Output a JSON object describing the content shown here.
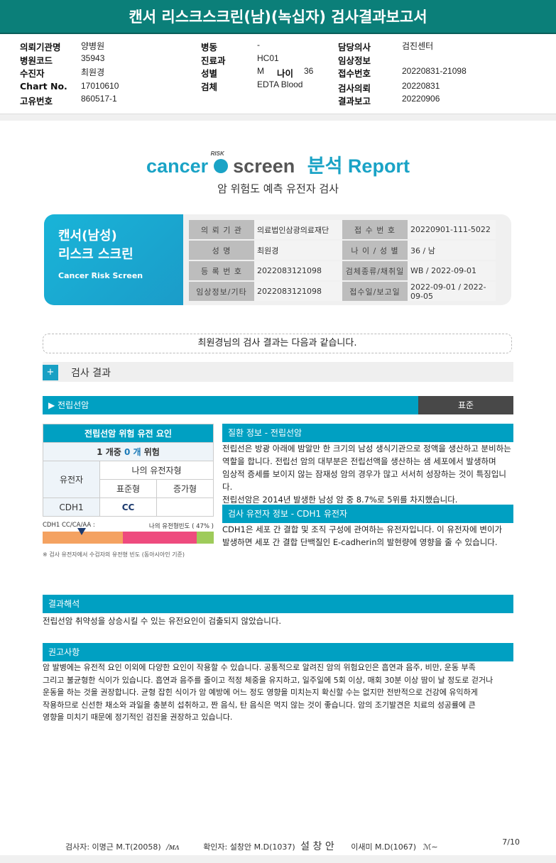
{
  "title": "캔서 리스크스크린(남)(녹십자) 검사결과보고서",
  "header": {
    "col1": [
      {
        "label": "의뢰기관명",
        "value": "양병원"
      },
      {
        "label": "병원코드",
        "value": "35943"
      },
      {
        "label": "수진자",
        "value": "최원경"
      },
      {
        "label": "Chart No.",
        "value": "17010610"
      },
      {
        "label": "고유번호",
        "value": "860517-1"
      }
    ],
    "col2": [
      {
        "label": "병동",
        "value": "-"
      },
      {
        "label": "진료과",
        "value": "HC01"
      },
      {
        "label": "성별",
        "value": "M"
      },
      {
        "label": "검체",
        "value": "EDTA Blood"
      }
    ],
    "age_label": "나이",
    "age_value": "36",
    "col3": [
      {
        "label": "담당의사",
        "value": "검진센터"
      },
      {
        "label": "임상정보",
        "value": ""
      },
      {
        "label": "접수번호",
        "value": "20220831-21098"
      },
      {
        "label": "검사의뢰",
        "value": "20220831"
      },
      {
        "label": "결과보고",
        "value": "20220906"
      }
    ]
  },
  "logo": {
    "cancer": "cancer",
    "risk": "RISK",
    "screen": "screen",
    "report": "분석 Report",
    "subtitle": "암 위험도 예측 유전자 검사"
  },
  "card": {
    "title1": "캔서(남성)",
    "title2": "리스크 스크린",
    "subtitle": "Cancer Risk Screen",
    "rows": [
      [
        "의 뢰 기 관",
        "의료법인삼광의료재단",
        "접 수 번 호",
        "20220901-111-5022"
      ],
      [
        "성 명",
        "최원경",
        "나 이 / 성 별",
        "36 / 남"
      ],
      [
        "등 록 번 호",
        "2022083121098",
        "검체종류/채취일",
        "WB / 2022-09-01"
      ],
      [
        "임상정보/기타",
        "2022083121098",
        "접수일/보고일",
        "2022-09-01 / 2022-09-05"
      ]
    ]
  },
  "greeting": "최원경님의 검사 결과는 다음과 같습니다.",
  "results": {
    "title": "검사 결과",
    "category": "▶ 전립선암",
    "status": "표준",
    "table": {
      "title": "전립선암 위험 유전 요인",
      "summary": "1 개중 0 개 위험",
      "gene_h": "유전자",
      "my_h": "나의 유전자형",
      "std_h": "표준형",
      "inc_h": "증가형",
      "gene": "CDH1",
      "std": "CC",
      "inc": ""
    },
    "bar": {
      "left_label": "CDH1 CC/CA/AA :",
      "right_label": "나의 유전형빈도 ( 47% )",
      "frequency_pct": 47,
      "segments": [
        {
          "pct": 47,
          "color": "#f4a261"
        },
        {
          "pct": 43,
          "color": "#ee4b7e"
        },
        {
          "pct": 10,
          "color": "#9ecb5a"
        }
      ]
    },
    "note": "※ 검사 유전자에서 수검자의 유전형 빈도 (동아시아인 기준)",
    "disease_h": "질환 정보 - 전립선암",
    "disease": [
      "전립선은 방광 아래에 밤알만 한 크기의 남성 생식기관으로 정액을 생산하고 분비하는",
      "역할을 합니다. 전립선 암의 대부분은 전립선액을 생산하는 샘 세포에서 발생하며",
      "임상적 증세를 보이지 않는 잠재성 암의 경우가 많고 서서히 성장하는 것이 특징입니다.",
      "전립선암은 2014년 발생한 남성 암 중 8.7%로 5위를 차지했습니다."
    ],
    "gene_info_h": "검사 유전자 정보 - CDH1 유전자",
    "gene_info": [
      "CDH1은 세포 간 결합 및 조직 구성에 관여하는 유전자입니다. 이 유전자에 변이가",
      "발생하면 세포 간 결합 단백질인 E-cadherin의 발현량에 영향을 줄 수 있습니다."
    ]
  },
  "interpretation": {
    "title": "결과해석",
    "text": "전립선암 취약성을 상승시킬 수 있는 유전요인이 검출되지 않았습니다."
  },
  "advice": {
    "title": "권고사항",
    "lines": [
      "암 발병에는 유전적 요인 이외에 다양한 요인이 작용할 수 있습니다. 공통적으로 알려진 암의 위험요인은 흡연과 음주, 비만, 운동 부족",
      "그리고 불균형한 식이가 있습니다. 흡연과 음주를 줄이고 적정 체중을 유지하고, 일주일에 5회 이상, 매회 30분 이상 땀이 날 정도로 걷거나",
      "운동을 하는 것을 권장합니다. 균형 잡힌 식이가 암 예방에 어느 정도 영향을 미치는지 확신할 수는 없지만 전반적으로 건강에 유익하게",
      "작용하므로 신선한 채소와 과일을 충분히 섭취하고, 짠 음식, 탄 음식은 먹지 않는 것이 좋습니다. 암의 조기발견은 치료의 성공률에 큰",
      "영향을 미치기 때문에 정기적인 검진을 권장하고 있습니다."
    ]
  },
  "footer": {
    "tester": "검사자:  이명근 M.T(20058)",
    "tester_sig": "이명근",
    "confirmer": "확인자:  설창안 M.D(1037)",
    "confirmer_sig": "설 창 안",
    "doctor2": "이새미 M.D(1067)",
    "doctor2_sig": "이새미",
    "page": "7/10"
  },
  "colors": {
    "header": "#0b7f79",
    "accent": "#00a0c2",
    "status": "#484848"
  }
}
